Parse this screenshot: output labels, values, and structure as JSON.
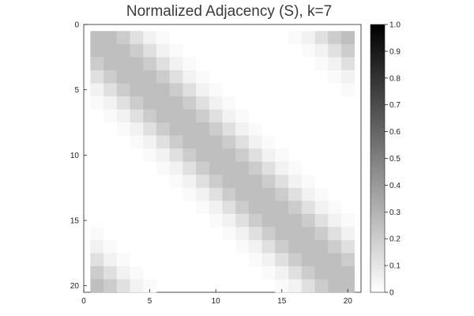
{
  "chart_data": {
    "type": "heatmap",
    "title": "Normalized Adjacency (S), k=7",
    "xlabel": "",
    "ylabel": "",
    "n": 20,
    "k": 7,
    "row_start": 1,
    "x_ticks": [
      "0",
      "5",
      "10",
      "15",
      "20"
    ],
    "y_ticks": [
      "0",
      "5",
      "10",
      "15",
      "20"
    ],
    "xlim": [
      0,
      21
    ],
    "ylim": [
      0,
      20.5
    ],
    "colorbar": {
      "min": 0,
      "max": 1,
      "ticks": [
        "0",
        "0.1",
        "0.2",
        "0.3",
        "0.4",
        "0.5",
        "0.6",
        "0.7",
        "0.8",
        "0.9",
        "1.0"
      ]
    },
    "cell_values_by_circular_offset": {
      "0": 0.25,
      "1": 0.25,
      "2": 0.2,
      "3": 0.12,
      "4": 0.05,
      "5": 0.02,
      "6": 0.0,
      "7": 0.0,
      "8": 0.0,
      "9": 0.0,
      "10": 0.0
    },
    "colormap": "grays",
    "grid": false,
    "legend": "colorbar-right"
  }
}
